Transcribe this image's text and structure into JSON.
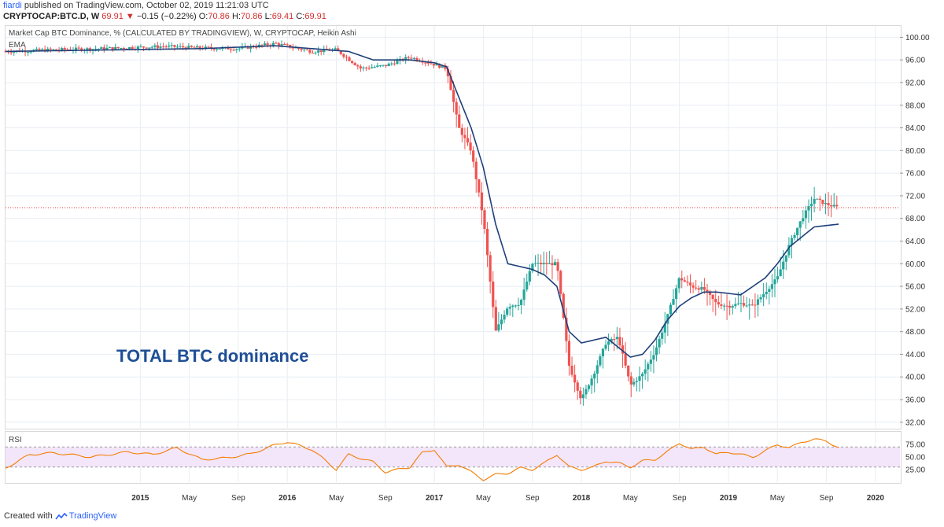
{
  "header": {
    "author": "fiardi",
    "published": "published on TradingView.com, October 02, 2019 11:21:03 UTC",
    "symbol": "CRYPTOCAP:BTC.D, W",
    "last": "69.91",
    "change": "−0.15 (−0.22%)",
    "o_label": "O:",
    "o_val": "70.86",
    "h_label": "H:",
    "h_val": "70.86",
    "l_label": "L:",
    "l_val": "69.41",
    "c_label": "C:",
    "c_val": "69.91"
  },
  "colors": {
    "up": "#26a69a",
    "down": "#ef5350",
    "ema": "#1f3f7a",
    "rsi": "#f57c00",
    "rsi_band": "#f3e6fb",
    "price_line": "#e53935",
    "grid": "#e8eef4"
  },
  "labels": {
    "series": "Market Cap BTC Dominance, % (CALCULATED BY TRADINGVIEW), W, CRYPTOCAP, Heikin Ashi",
    "ema": "EMA",
    "rsi": "RSI",
    "annotation": "TOTAL BTC dominance",
    "footer_prefix": "Created with",
    "footer_brand": "TradingView"
  },
  "chart_data": [
    {
      "type": "candlestick",
      "title": "Market Cap BTC Dominance, % (CALCULATED BY TRADINGVIEW), W, CRYPTOCAP, Heikin Ashi",
      "annotation": "TOTAL BTC dominance",
      "ylim": [
        31,
        102
      ],
      "y_ticks": [
        32.0,
        36.0,
        40.0,
        44.0,
        48.0,
        52.0,
        56.0,
        60.0,
        64.0,
        68.0,
        72.0,
        76.0,
        80.0,
        84.0,
        88.0,
        92.0,
        96.0,
        100.0
      ],
      "x_ticks": [
        "2015",
        "May",
        "Sep",
        "2016",
        "May",
        "Sep",
        "2017",
        "May",
        "Sep",
        "2018",
        "May",
        "Sep",
        "2019",
        "May",
        "Sep",
        "2020"
      ],
      "x_range": [
        "2014-02",
        "2020-03"
      ],
      "last_price": 69.91,
      "series": [
        {
          "name": "Heikin Ashi (approx. weekly close)",
          "anchors": [
            [
              "2014-02",
              97.5
            ],
            [
              "2014-06",
              97.8
            ],
            [
              "2014-10",
              98.0
            ],
            [
              "2015-03",
              98.4
            ],
            [
              "2015-06",
              98.1
            ],
            [
              "2015-09",
              98.0
            ],
            [
              "2015-12",
              98.9
            ],
            [
              "2016-03",
              97.5
            ],
            [
              "2016-05",
              97.8
            ],
            [
              "2016-07",
              94.5
            ],
            [
              "2016-09",
              95.0
            ],
            [
              "2016-11",
              96.5
            ],
            [
              "2017-01",
              95.2
            ],
            [
              "2017-02",
              94.5
            ],
            [
              "2017-03",
              84.0
            ],
            [
              "2017-04",
              80.0
            ],
            [
              "2017-05",
              68.0
            ],
            [
              "2017-06",
              48.0
            ],
            [
              "2017-07",
              52.5
            ],
            [
              "2017-08",
              53.0
            ],
            [
              "2017-09",
              60.0
            ],
            [
              "2017-10",
              60.0
            ],
            [
              "2017-11",
              60.0
            ],
            [
              "2017-12",
              42.0
            ],
            [
              "2018-01",
              36.0
            ],
            [
              "2018-02",
              40.5
            ],
            [
              "2018-03",
              46.0
            ],
            [
              "2018-04",
              47.0
            ],
            [
              "2018-05",
              38.5
            ],
            [
              "2018-06",
              40.5
            ],
            [
              "2018-07",
              44.5
            ],
            [
              "2018-08",
              50.5
            ],
            [
              "2018-09",
              57.5
            ],
            [
              "2018-10",
              56.0
            ],
            [
              "2018-11",
              55.5
            ],
            [
              "2018-12",
              53.0
            ],
            [
              "2019-01",
              52.5
            ],
            [
              "2019-02",
              53.0
            ],
            [
              "2019-03",
              52.5
            ],
            [
              "2019-04",
              55.0
            ],
            [
              "2019-05",
              57.5
            ],
            [
              "2019-06",
              63.5
            ],
            [
              "2019-07",
              68.0
            ],
            [
              "2019-08",
              71.5
            ],
            [
              "2019-09",
              70.5
            ],
            [
              "2019-10",
              69.91
            ]
          ]
        },
        {
          "name": "EMA",
          "anchors": [
            [
              "2014-02",
              97.5
            ],
            [
              "2015-06",
              98.0
            ],
            [
              "2015-12",
              98.5
            ],
            [
              "2016-06",
              97.5
            ],
            [
              "2016-08",
              96.0
            ],
            [
              "2016-11",
              96.0
            ],
            [
              "2017-01",
              95.5
            ],
            [
              "2017-02",
              94.8
            ],
            [
              "2017-04",
              84.0
            ],
            [
              "2017-05",
              77.0
            ],
            [
              "2017-06",
              67.0
            ],
            [
              "2017-07",
              60.0
            ],
            [
              "2017-08",
              59.5
            ],
            [
              "2017-09",
              59.0
            ],
            [
              "2017-10",
              58.0
            ],
            [
              "2017-11",
              56.0
            ],
            [
              "2017-12",
              48.0
            ],
            [
              "2018-01",
              46.0
            ],
            [
              "2018-02",
              46.5
            ],
            [
              "2018-03",
              47.0
            ],
            [
              "2018-05",
              43.5
            ],
            [
              "2018-06",
              44.0
            ],
            [
              "2018-07",
              46.5
            ],
            [
              "2018-08",
              50.0
            ],
            [
              "2018-09",
              52.5
            ],
            [
              "2018-10",
              54.0
            ],
            [
              "2018-11",
              55.0
            ],
            [
              "2018-12",
              55.0
            ],
            [
              "2019-02",
              54.5
            ],
            [
              "2019-03",
              56.0
            ],
            [
              "2019-04",
              57.5
            ],
            [
              "2019-05",
              60.0
            ],
            [
              "2019-06",
              63.0
            ],
            [
              "2019-08",
              66.5
            ],
            [
              "2019-10",
              67.0
            ]
          ]
        }
      ]
    },
    {
      "type": "line",
      "title": "RSI",
      "ylim": [
        0,
        100
      ],
      "y_ticks": [
        25.0,
        50.0,
        75.0
      ],
      "band": [
        30,
        70
      ],
      "series": [
        {
          "name": "RSI",
          "anchors": [
            [
              "2014-02",
              28
            ],
            [
              "2014-04",
              55
            ],
            [
              "2014-06",
              58
            ],
            [
              "2014-09",
              50
            ],
            [
              "2014-12",
              60
            ],
            [
              "2015-02",
              55
            ],
            [
              "2015-04",
              68
            ],
            [
              "2015-06",
              45
            ],
            [
              "2015-08",
              48
            ],
            [
              "2015-10",
              56
            ],
            [
              "2015-12",
              74
            ],
            [
              "2016-01",
              80
            ],
            [
              "2016-03",
              65
            ],
            [
              "2016-05",
              25
            ],
            [
              "2016-06",
              55
            ],
            [
              "2016-08",
              40
            ],
            [
              "2016-09",
              20
            ],
            [
              "2016-11",
              30
            ],
            [
              "2016-12",
              58
            ],
            [
              "2017-01",
              65
            ],
            [
              "2017-02",
              30
            ],
            [
              "2017-03",
              35
            ],
            [
              "2017-04",
              20
            ],
            [
              "2017-05",
              5
            ],
            [
              "2017-06",
              15
            ],
            [
              "2017-07",
              18
            ],
            [
              "2017-08",
              28
            ],
            [
              "2017-09",
              25
            ],
            [
              "2017-10",
              38
            ],
            [
              "2017-11",
              55
            ],
            [
              "2017-12",
              30
            ],
            [
              "2018-01",
              25
            ],
            [
              "2018-02",
              30
            ],
            [
              "2018-03",
              42
            ],
            [
              "2018-04",
              38
            ],
            [
              "2018-05",
              30
            ],
            [
              "2018-06",
              42
            ],
            [
              "2018-07",
              45
            ],
            [
              "2018-08",
              60
            ],
            [
              "2018-09",
              78
            ],
            [
              "2018-10",
              65
            ],
            [
              "2018-11",
              70
            ],
            [
              "2018-12",
              55
            ],
            [
              "2019-01",
              60
            ],
            [
              "2019-03",
              50
            ],
            [
              "2019-04",
              62
            ],
            [
              "2019-05",
              75
            ],
            [
              "2019-06",
              68
            ],
            [
              "2019-07",
              80
            ],
            [
              "2019-08",
              85
            ],
            [
              "2019-09",
              82
            ],
            [
              "2019-10",
              68
            ]
          ]
        }
      ]
    }
  ]
}
